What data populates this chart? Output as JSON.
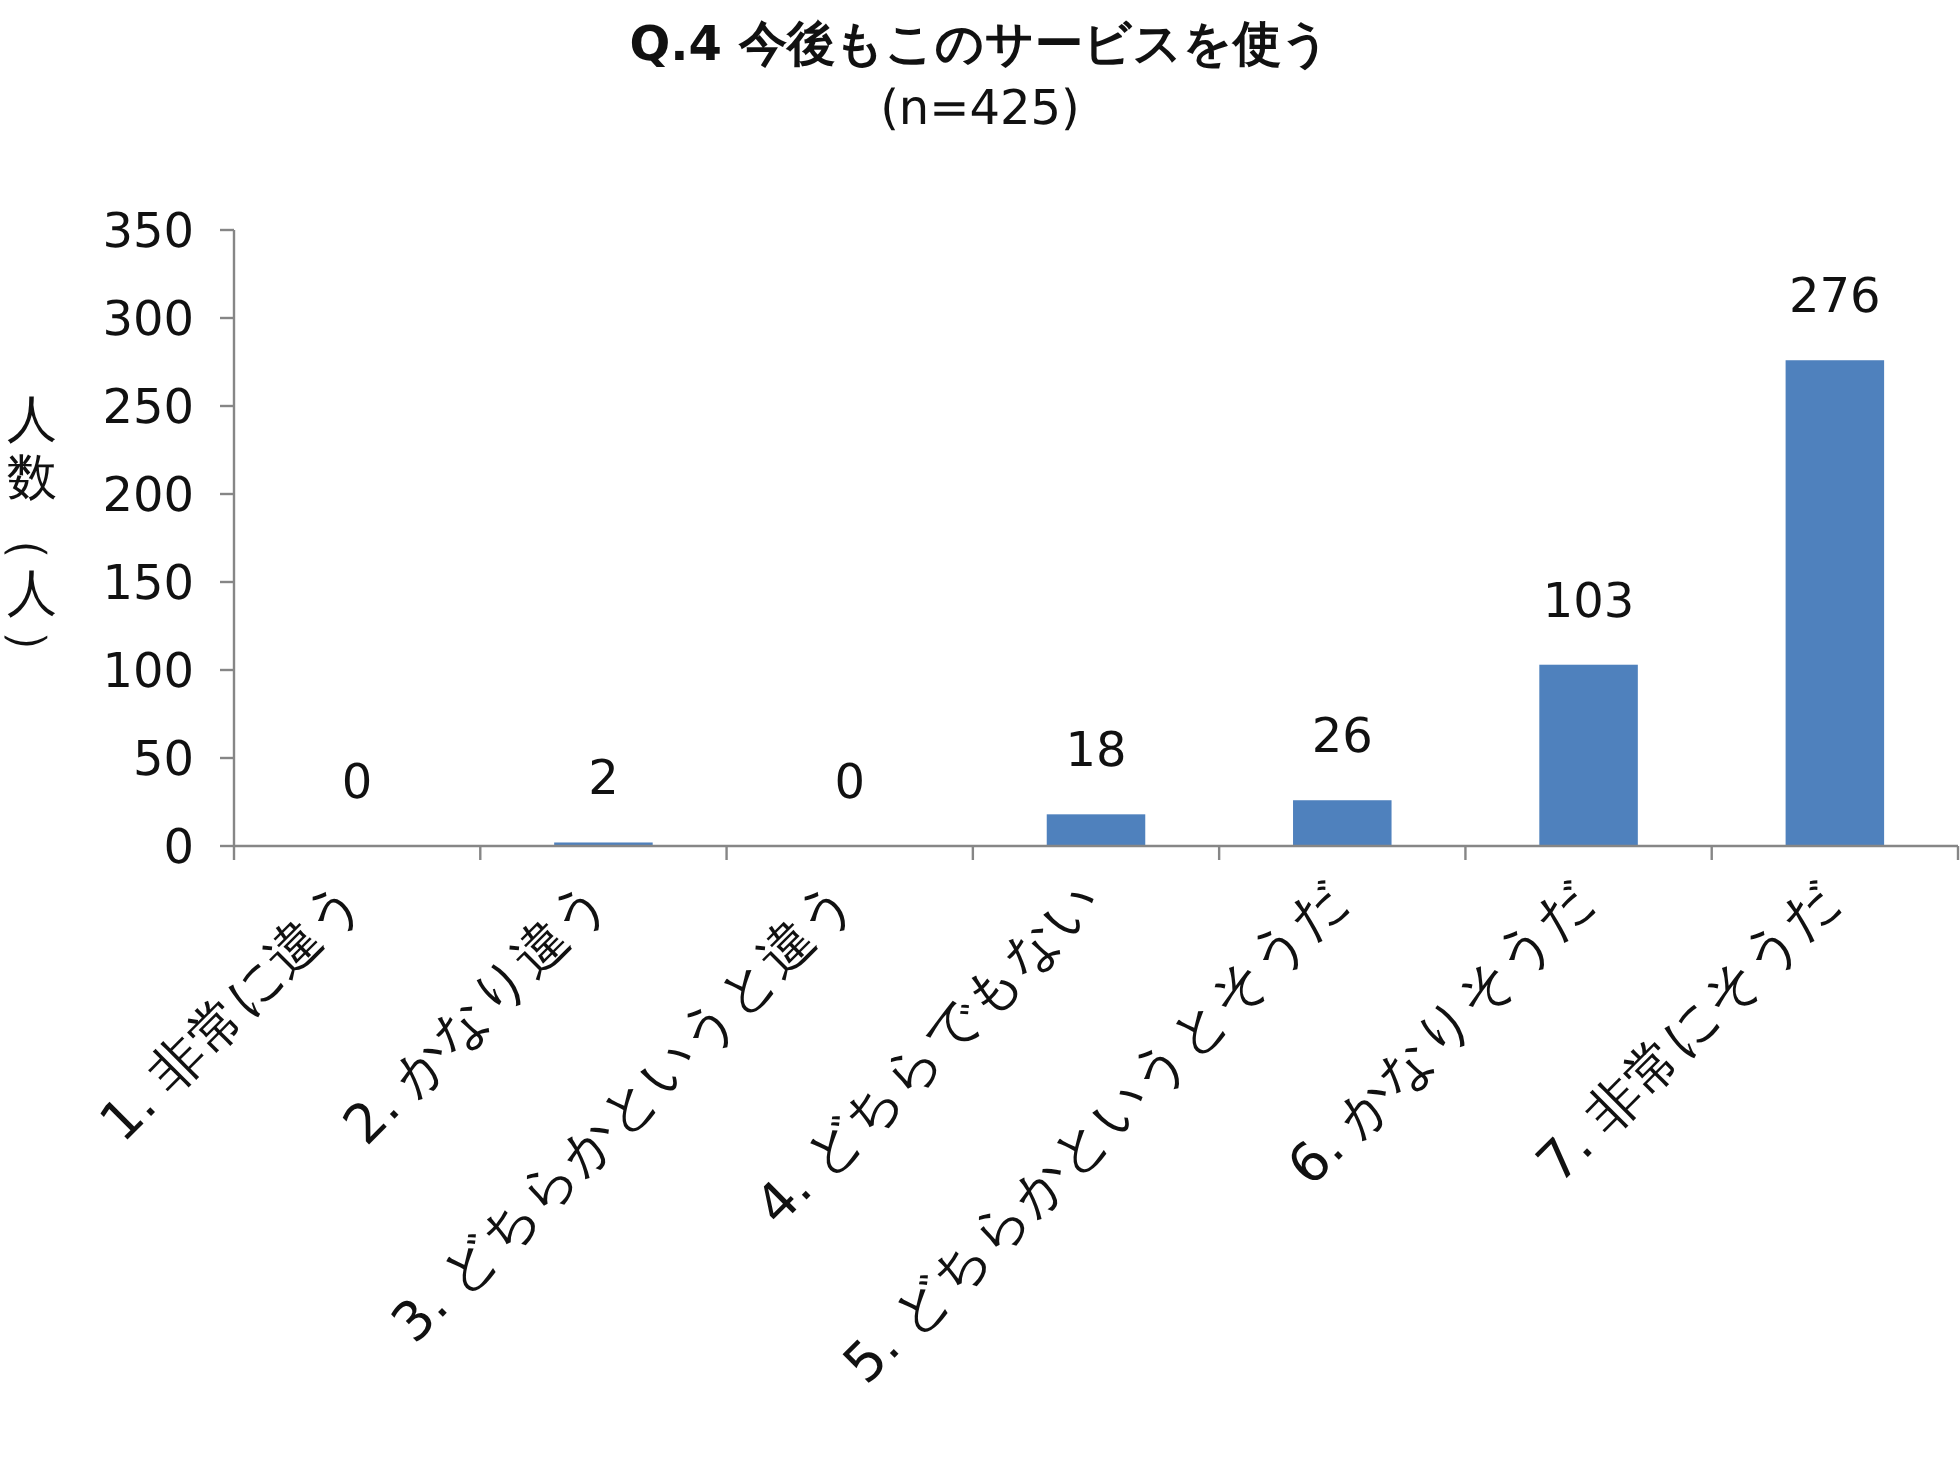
{
  "chart_data": {
    "type": "bar",
    "title": "Q.4 今後もこのサービスを使う",
    "subtitle": "(n=425)",
    "ylabel": "人数（人）",
    "categories": [
      "1. 非常に違う",
      "2. かなり違う",
      "3. どちらかというと違う",
      "4. どちらでもない",
      "5. どちらかというとそうだ",
      "6. かなりそうだ",
      "7. 非常にそうだ"
    ],
    "values": [
      0,
      2,
      0,
      18,
      26,
      103,
      276
    ],
    "color": "#4f81bd",
    "ylim": [
      0,
      350
    ],
    "yticks": [
      0,
      50,
      100,
      150,
      200,
      250,
      300,
      350
    ],
    "data_labels": true
  }
}
